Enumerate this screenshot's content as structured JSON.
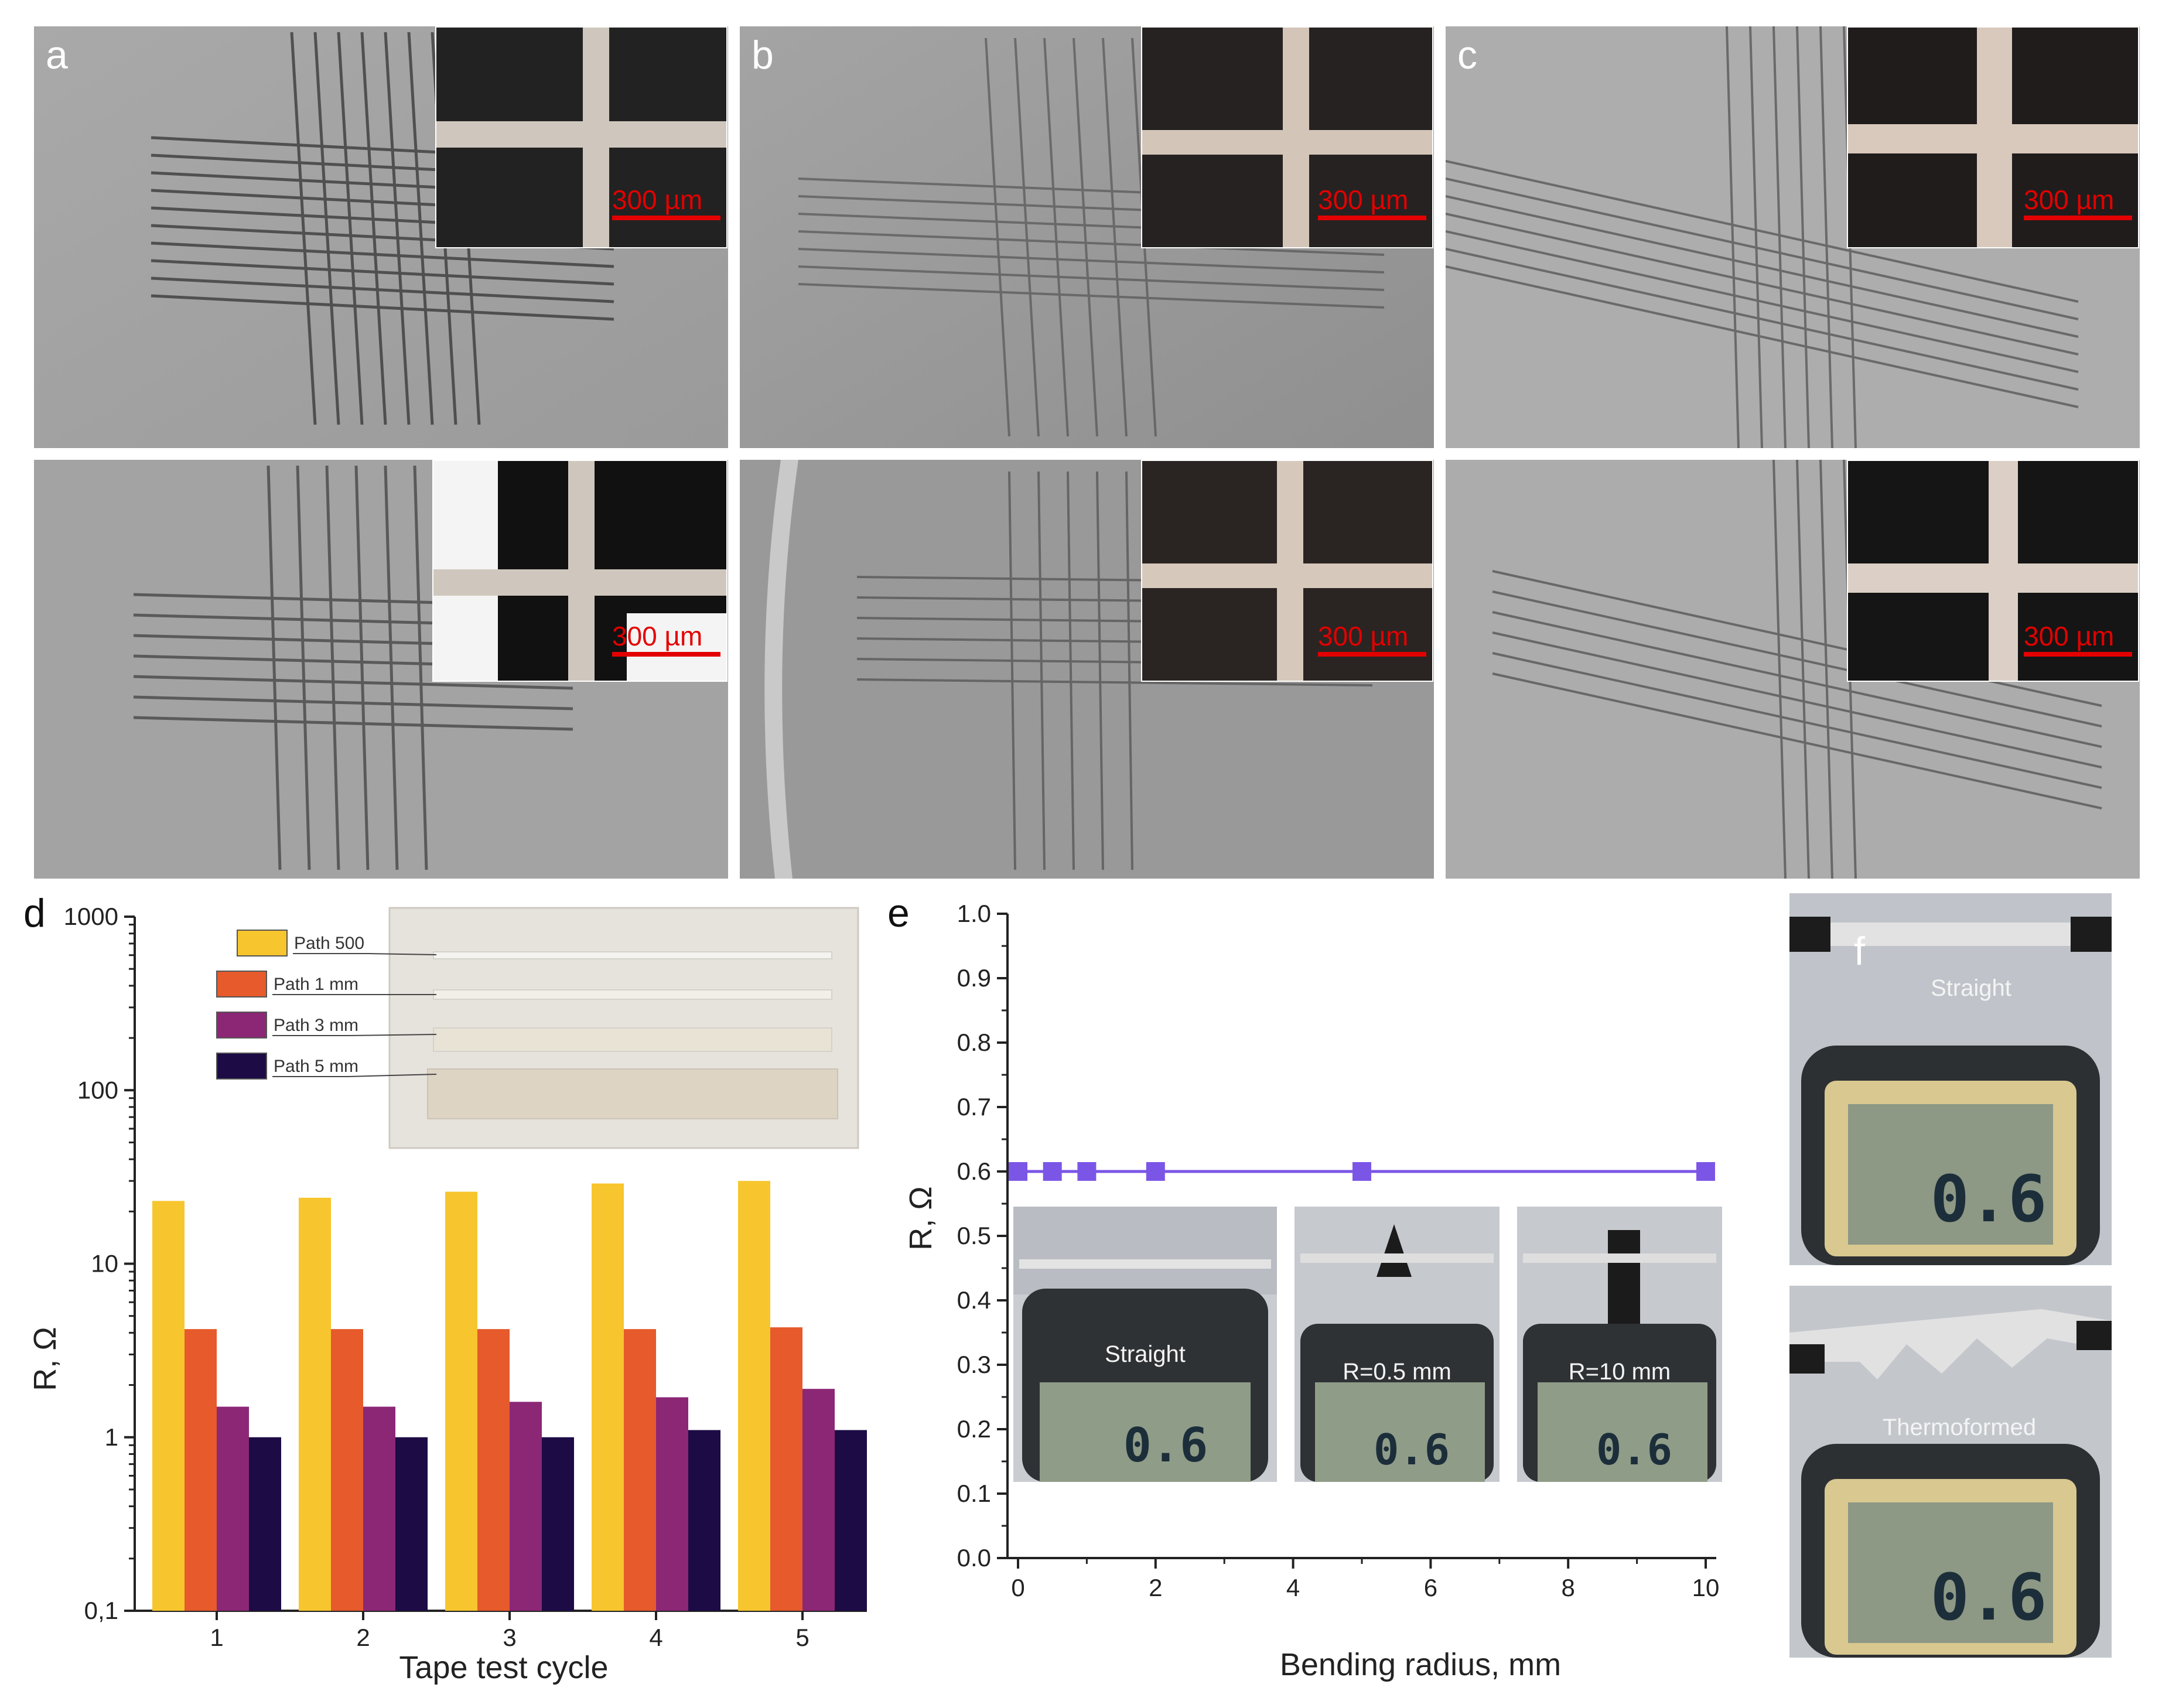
{
  "panels": {
    "a": {
      "label": "a"
    },
    "b": {
      "label": "b"
    },
    "c": {
      "label": "c"
    },
    "d": {
      "label": "d"
    },
    "e": {
      "label": "e"
    },
    "f": {
      "label": "f"
    }
  },
  "scale_bar_label": "300 µm",
  "chart_data": [
    {
      "type": "bar",
      "panel": "d",
      "xlabel": "Tape test cycle",
      "ylabel": "R, Ω",
      "yscale": "log",
      "ylim": [
        0.1,
        1000
      ],
      "ytick_labels": [
        "0,1",
        "1",
        "10",
        "100",
        "1000"
      ],
      "categories": [
        "1",
        "2",
        "3",
        "4",
        "5"
      ],
      "series": [
        {
          "name": "Path 500",
          "color": "#f7c52d",
          "values": [
            23,
            24,
            26,
            29,
            30
          ]
        },
        {
          "name": "Path 1 mm",
          "color": "#e65a2b",
          "values": [
            4.2,
            4.2,
            4.2,
            4.2,
            4.3
          ]
        },
        {
          "name": "Path 3 mm",
          "color": "#8c2776",
          "values": [
            1.5,
            1.5,
            1.6,
            1.7,
            1.9
          ]
        },
        {
          "name": "Path 5 mm",
          "color": "#1c0b45",
          "values": [
            1.0,
            1.0,
            1.0,
            1.1,
            1.1
          ]
        }
      ],
      "legend_placement": "top-left"
    },
    {
      "type": "line",
      "panel": "e",
      "xlabel": "Bending radius, mm",
      "ylabel": "R, Ω",
      "xlim": [
        0,
        10
      ],
      "ylim": [
        0.0,
        1.0
      ],
      "xticks": [
        0,
        2,
        4,
        6,
        8,
        10
      ],
      "yticks": [
        0.0,
        0.1,
        0.2,
        0.3,
        0.4,
        0.5,
        0.6,
        0.7,
        0.8,
        0.9,
        1.0
      ],
      "series": [
        {
          "color": "#7b56e6",
          "x": [
            0,
            0.5,
            1,
            2,
            5,
            10
          ],
          "y": [
            0.6,
            0.6,
            0.6,
            0.6,
            0.6,
            0.6
          ]
        }
      ]
    }
  ],
  "photos_e": [
    {
      "caption": "Straight",
      "reading": "0.6"
    },
    {
      "caption": "R=0.5 mm",
      "reading": "0.6"
    },
    {
      "caption": "R=10 mm",
      "reading": "0.6"
    }
  ],
  "photos_f": [
    {
      "caption": "Straight",
      "reading": "0.6"
    },
    {
      "caption": "Thermoformed",
      "reading": "0.6"
    }
  ]
}
